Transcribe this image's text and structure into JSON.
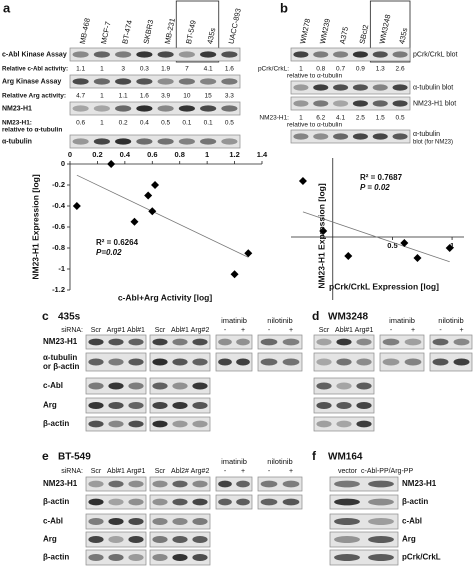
{
  "a": {
    "letter": "a",
    "lanes": [
      "MB-468",
      "MCF-7",
      "BT-474",
      "SKBR3",
      "MB-231",
      "BT-549",
      "435s",
      "UACC-893"
    ],
    "rows": [
      {
        "label": "c-Abl Kinase Assay"
      },
      {
        "label": "Relative c-Abl activity:",
        "values": [
          1.1,
          1,
          3,
          0.3,
          1.9,
          7,
          4.1,
          1.6
        ]
      },
      {
        "label": "Arg Kinase Assay"
      },
      {
        "label": "Relative Arg activity:",
        "values": [
          4.7,
          1,
          1.1,
          1.6,
          3.9,
          10,
          15,
          3.3
        ]
      },
      {
        "label": "NM23-H1"
      },
      {
        "label": "NM23-H1:",
        "label2": "relative to α-tubulin",
        "values": [
          0.6,
          1,
          0.2,
          0.4,
          0.5,
          0.1,
          0.1,
          0.5
        ]
      },
      {
        "label": "α-tubulin"
      }
    ],
    "chart": {
      "type": "scatter",
      "x_label": "c-Abl+Arg Activity [log]",
      "y_label": "NM23-H1 Expression [log]",
      "annotations": [
        "R² = 0.6264",
        "P=0.02"
      ],
      "x": [
        0.3,
        0.05,
        0.47,
        0.57,
        0.6,
        0.62,
        1.2,
        1.3
      ],
      "y": [
        0,
        -0.4,
        -0.55,
        -0.3,
        -0.45,
        -0.2,
        -1.05,
        -0.85
      ],
      "xlim": [
        0,
        1.4
      ],
      "ylim": [
        -1.2,
        0
      ],
      "xticks": [
        0,
        0.2,
        0.4,
        0.6,
        0.8,
        1,
        1.2,
        1.4
      ],
      "yticks": [
        0,
        -0.2,
        -0.4,
        -0.6,
        -0.8,
        -1,
        -1.2
      ],
      "trendline": true
    }
  },
  "b": {
    "letter": "b",
    "label_side": "right",
    "lanes": [
      "WM278",
      "WM239",
      "A375",
      "SBcl2",
      "WM3248",
      "435s"
    ],
    "rows": [
      {
        "label": "pCrk/CrkL blot"
      },
      {
        "label": "pCrk/CrkL:",
        "label2": "relative to α-tubulin",
        "values": [
          1,
          0.8,
          0.7,
          0.9,
          1.3,
          2.6
        ]
      },
      {
        "label": "α-tubulin blot"
      },
      {
        "label": "NM23-H1 blot"
      },
      {
        "label": "NM23-H1:",
        "label2": "relative to α-tubulin",
        "values": [
          1,
          6.2,
          4.1,
          2.5,
          1.5,
          0.5
        ]
      },
      {
        "label": "α-tubulin",
        "label2": "blot (for NM23)"
      }
    ],
    "chart": {
      "type": "scatter",
      "x_label": "pCrk/CrkL Expression [log]",
      "y_label": "NM23-H1 Expression [log]",
      "annotations": [
        "R² = 0.7687",
        "P = 0.02"
      ],
      "x": [
        -0.25,
        -0.08,
        0.13,
        0.6,
        0.71,
        0.98
      ],
      "y": [
        0.56,
        0.06,
        -0.19,
        -0.06,
        -0.21,
        -0.11
      ],
      "xlim": [
        -0.35,
        1.1
      ],
      "ylim": [
        -0.63,
        0.79
      ],
      "xticks": [
        0.5,
        1
      ],
      "trendline": true
    }
  },
  "c": {
    "letter": "c",
    "cell_line": "435s",
    "sirna_label": "siRNA:",
    "groups": [
      {
        "lanes": [
          "Scr",
          "Arg#1",
          "Abl#1"
        ]
      },
      {
        "lanes": [
          "Scr",
          "Abl#1",
          "Arg#2"
        ]
      },
      {
        "header": "imatinib",
        "lanes": [
          "-",
          "+"
        ]
      },
      {
        "header": "nilotinib",
        "lanes": [
          "-",
          "+"
        ]
      }
    ],
    "rows": [
      {
        "label": "NM23-H1"
      },
      {
        "label": "α-tubulin",
        "label2": "or β-actin"
      }
    ],
    "sirna_rows": [
      {
        "label": "c-Abl"
      },
      {
        "label": "Arg"
      },
      {
        "label": "β-actin"
      }
    ]
  },
  "d": {
    "letter": "d",
    "cell_line": "WM3248",
    "groups": [
      {
        "lanes": [
          "Scr",
          "Abl#1",
          "Arg#1"
        ]
      },
      {
        "header": "imatinib",
        "lanes": [
          "-",
          "+"
        ]
      },
      {
        "header": "nilotinib",
        "lanes": [
          "-",
          "+"
        ]
      }
    ],
    "rows": [
      {
        "label": null
      },
      {
        "label": null
      }
    ],
    "sirna_rows": [
      {
        "label": null
      },
      {
        "label": null
      },
      {
        "label": null
      }
    ]
  },
  "e": {
    "letter": "e",
    "cell_line": "BT-549",
    "sirna_label": "siRNA:",
    "groups": [
      {
        "lanes": [
          "Scr",
          "Abl#1",
          "Arg#1"
        ]
      },
      {
        "lanes": [
          "Scr",
          "Abl2#",
          "Arg#2"
        ]
      },
      {
        "header": "imatinib",
        "lanes": [
          "-",
          "+"
        ]
      },
      {
        "header": "nilotinib",
        "lanes": [
          "-",
          "+"
        ]
      }
    ],
    "rows": [
      {
        "label": "NM23-H1"
      },
      {
        "label": "β-actin"
      }
    ],
    "sirna_rows": [
      {
        "label": "c-Abl"
      },
      {
        "label": "Arg"
      },
      {
        "label": "β-actin"
      }
    ]
  },
  "f": {
    "letter": "f",
    "cell_line": "WM164",
    "label_side": "right",
    "groups": [
      {
        "lanes": [
          "vector",
          "c-Abl-PP/Arg-PP"
        ]
      }
    ],
    "rows": [
      {
        "label": "NM23-H1"
      },
      {
        "label": "β-actin"
      },
      {
        "label": "c-Abl"
      },
      {
        "label": "Arg"
      },
      {
        "label": "pCrk/CrkL"
      }
    ]
  }
}
